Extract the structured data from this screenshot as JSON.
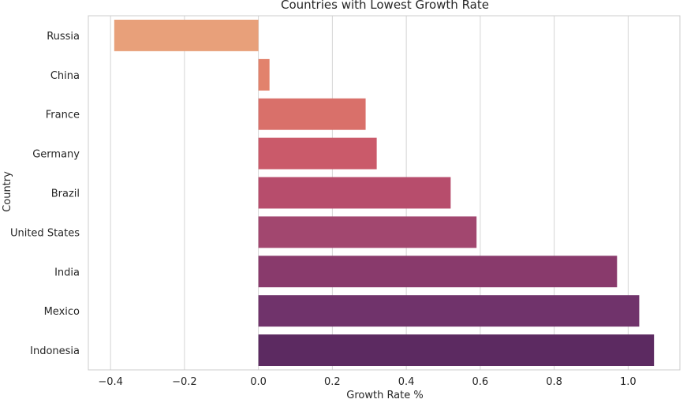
{
  "chart_data": {
    "type": "bar",
    "orientation": "horizontal",
    "title": "Countries with Lowest Growth Rate",
    "xlabel": "Growth Rate %",
    "ylabel": "Country",
    "categories": [
      "Russia",
      "China",
      "France",
      "Germany",
      "Brazil",
      "United States",
      "India",
      "Mexico",
      "Indonesia"
    ],
    "values": [
      -0.39,
      0.03,
      0.29,
      0.32,
      0.52,
      0.59,
      0.97,
      1.03,
      1.07
    ],
    "xlim": [
      -0.46,
      1.14
    ],
    "xticks": [
      -0.4,
      -0.2,
      0.0,
      0.2,
      0.4,
      0.6,
      0.8,
      1.0
    ],
    "xtick_labels": [
      "−0.4",
      "−0.2",
      "0.0",
      "0.2",
      "0.4",
      "0.6",
      "0.8",
      "1.0"
    ],
    "grid": "vertical",
    "colors": [
      "#e8a07a",
      "#e2826c",
      "#d9706a",
      "#ca5a6a",
      "#b74d6c",
      "#a2476f",
      "#893a6c",
      "#70336b",
      "#5c2a61"
    ]
  }
}
